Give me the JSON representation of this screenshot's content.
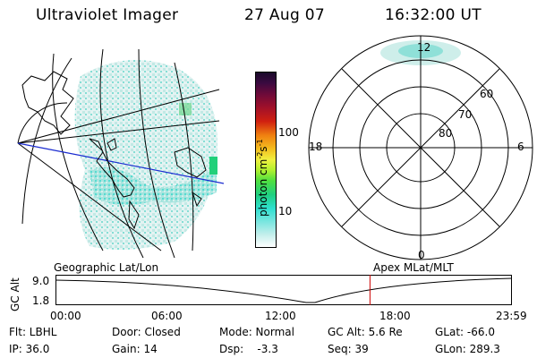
{
  "header": {
    "instrument": "Ultraviolet Imager",
    "date": "27 Aug 07",
    "time": "16:32:00 UT"
  },
  "colorbar": {
    "unit_label": "photon cm",
    "unit_exp1": "-2",
    "unit_mid": "s",
    "unit_exp2": "-1",
    "tick_high": "100",
    "tick_low": "10"
  },
  "polar_plot": {
    "mlt_top": "12",
    "mlt_left": "18",
    "mlt_right": "6",
    "mlt_bottom": "0",
    "lat_labels": [
      "60",
      "70",
      "80"
    ]
  },
  "timeline": {
    "ylabel": "GC Alt",
    "y_high": "9.0",
    "y_low": "1.8",
    "left_label": "Geographic Lat/Lon",
    "right_label": "Apex MLat/MLT",
    "ticks": [
      "00:00",
      "06:00",
      "12:00",
      "18:00",
      "23:59"
    ],
    "marker_time": "16:32",
    "marker_fraction": 0.689,
    "marker_color": "#cc0000"
  },
  "footer": {
    "filter": "Flt: LBHL",
    "ip": "IP: 36.0",
    "door": "Door: Closed",
    "gain": "Gain: 14",
    "mode": "Mode: Normal",
    "dsp": "Dsp:    -3.3",
    "gc_alt": "GC Alt: 5.6 Re",
    "seq": "Seq: 39",
    "glat": "GLat: -66.0",
    "glon": "GLon: 289.3"
  },
  "colors": {
    "aurora_teal": "#5fe0d6",
    "aurora_light": "#c9ece8",
    "aurora_green": "#22d07a",
    "geo_blue": "#1a2bd0"
  }
}
